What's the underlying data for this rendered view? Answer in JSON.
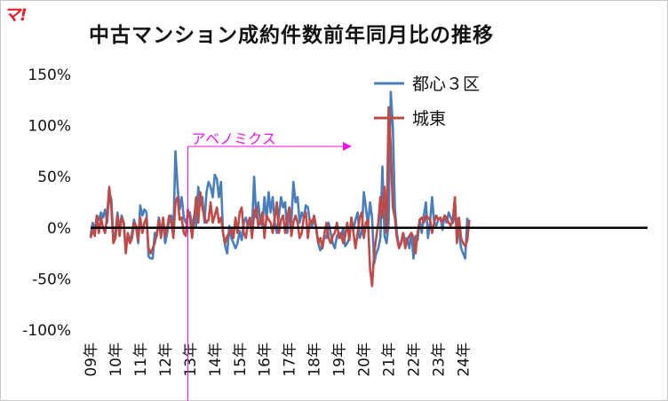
{
  "logo_text": "マ!",
  "chart_data": {
    "type": "line",
    "title": "中古マンション成約件数前年同月比の推移",
    "xlabel": "",
    "ylabel": "",
    "ylim": [
      -100,
      150
    ],
    "yticks": [
      -100,
      -50,
      0,
      50,
      100,
      150
    ],
    "ytick_labels": [
      "-100%",
      "-50%",
      "0%",
      "50%",
      "100%",
      "150%"
    ],
    "xtick_labels": [
      "09年",
      "10年",
      "11年",
      "12年",
      "13年",
      "14年",
      "15年",
      "16年",
      "17年",
      "18年",
      "19年",
      "20年",
      "21年",
      "22年",
      "23年",
      "24年"
    ],
    "x_start": "2009-01",
    "grid": false,
    "legend": "top-right",
    "colors": {
      "tokyo3": "#4a7ebb",
      "joto": "#be4b48",
      "zero_line": "#000000",
      "annotation": "#e619e6"
    },
    "series": [
      {
        "name": "都心３区",
        "values": [
          -8,
          5,
          -3,
          12,
          8,
          15,
          10,
          18,
          5,
          35,
          28,
          -10,
          -5,
          15,
          -2,
          12,
          5,
          -20,
          -8,
          -12,
          -5,
          8,
          0,
          -15,
          22,
          12,
          18,
          15,
          -28,
          -30,
          -30,
          -5,
          -8,
          10,
          -5,
          8,
          -15,
          -5,
          8,
          12,
          -5,
          75,
          40,
          18,
          30,
          10,
          5,
          12,
          15,
          0,
          12,
          2,
          40,
          22,
          30,
          5,
          35,
          45,
          40,
          30,
          52,
          48,
          30,
          45,
          -5,
          -18,
          -25,
          2,
          -10,
          -15,
          -20,
          -15,
          -3,
          -12,
          5,
          10,
          2,
          5,
          0,
          50,
          10,
          25,
          5,
          2,
          30,
          8,
          35,
          15,
          30,
          5,
          -5,
          12,
          30,
          20,
          25,
          -5,
          20,
          5,
          45,
          25,
          30,
          5,
          15,
          10,
          22,
          20,
          5,
          2,
          10,
          -2,
          -15,
          -22,
          -18,
          -8,
          -10,
          5,
          -5,
          -15,
          -20,
          -8,
          -5,
          -10,
          0,
          -18,
          -15,
          -10,
          10,
          -2,
          8,
          15,
          -10,
          -5,
          35,
          20,
          2,
          25,
          10,
          -35,
          -25,
          -20,
          -10,
          60,
          -8,
          -15,
          5,
          133,
          100,
          20,
          -5,
          -18,
          -15,
          -5,
          -12,
          -10,
          -20,
          -5,
          -30,
          -8,
          -12,
          8,
          -5,
          12,
          25,
          -10,
          5,
          30,
          5,
          2,
          8,
          10,
          -2,
          12,
          5,
          15,
          10,
          5,
          12,
          8,
          -5,
          -20,
          -25,
          -30,
          10
        ],
        "color": "#4a7ebb"
      },
      {
        "name": "城東",
        "values": [
          -10,
          -2,
          -8,
          12,
          -5,
          10,
          0,
          -5,
          12,
          40,
          20,
          -15,
          -10,
          12,
          -8,
          10,
          5,
          -25,
          -5,
          -15,
          -10,
          5,
          2,
          -12,
          10,
          -5,
          5,
          10,
          -20,
          -25,
          -20,
          -15,
          -5,
          8,
          -10,
          10,
          -8,
          0,
          12,
          5,
          -10,
          25,
          30,
          8,
          10,
          -5,
          -8,
          18,
          10,
          -10,
          8,
          30,
          5,
          35,
          20,
          10,
          5,
          8,
          25,
          5,
          12,
          20,
          5,
          10,
          -5,
          -15,
          -8,
          -5,
          0,
          -10,
          10,
          -5,
          15,
          20,
          -5,
          -10,
          5,
          10,
          -10,
          15,
          20,
          2,
          5,
          15,
          -10,
          12,
          8,
          5,
          -5,
          10,
          25,
          -5,
          8,
          12,
          -5,
          10,
          20,
          -8,
          5,
          12,
          5,
          -10,
          -5,
          10,
          15,
          -10,
          8,
          5,
          12,
          0,
          -15,
          -10,
          -20,
          -5,
          5,
          -10,
          -15,
          -8,
          -5,
          5,
          -10,
          -5,
          -15,
          -8,
          5,
          -12,
          10,
          -5,
          -20,
          -5,
          10,
          15,
          -10,
          5,
          8,
          -40,
          -57,
          -25,
          -10,
          5,
          30,
          10,
          40,
          -5,
          118,
          80,
          20,
          10,
          -10,
          -20,
          -15,
          -5,
          -20,
          -12,
          -8,
          -5,
          -10,
          -25,
          -5,
          8,
          10,
          5,
          12,
          10,
          8,
          -5,
          5,
          12,
          8,
          10,
          5,
          12,
          10,
          5,
          2,
          8,
          30,
          -15,
          10,
          -10,
          -15,
          -18,
          -12,
          8
        ],
        "color": "#be4b48"
      }
    ],
    "annotations": [
      {
        "text": "アベノミクス",
        "x": "2012-12",
        "color": "#e619e6"
      }
    ]
  }
}
